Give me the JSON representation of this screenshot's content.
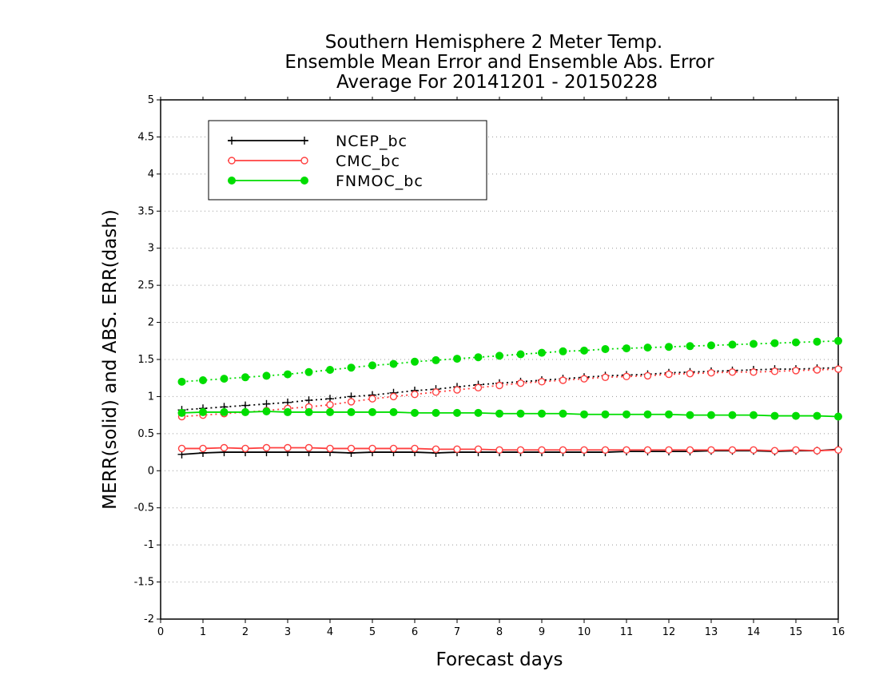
{
  "chart_data": {
    "type": "line",
    "title": [
      "Southern Hemisphere 2 Meter Temp.",
      "Ensemble Mean Error and Ensemble Abs. Error",
      "Average For 20141201 - 20150228"
    ],
    "xlabel": "Forecast days",
    "ylabel": "MERR(solid) and ABS. ERR(dash)",
    "xlim": [
      0,
      16
    ],
    "ylim": [
      -2,
      5
    ],
    "xticks": [
      0,
      1,
      2,
      3,
      4,
      5,
      6,
      7,
      8,
      9,
      10,
      11,
      12,
      13,
      14,
      15,
      16
    ],
    "yticks": [
      -2,
      -1.5,
      -1,
      -0.5,
      0,
      0.5,
      1,
      1.5,
      2,
      2.5,
      3,
      3.5,
      4,
      4.5,
      5
    ],
    "ytick_labels": [
      "-2",
      "-1.5",
      "-1",
      "-0.5",
      "0",
      "0.5",
      "1",
      "1.5",
      "2",
      "2.5",
      "3",
      "3.5",
      "4",
      "4.5",
      "5"
    ],
    "grid": "horizontal dotted",
    "legend": "top-left",
    "x": [
      0.5,
      1,
      1.5,
      2,
      2.5,
      3,
      3.5,
      4,
      4.5,
      5,
      5.5,
      6,
      6.5,
      7,
      7.5,
      8,
      8.5,
      9,
      9.5,
      10,
      10.5,
      11,
      11.5,
      12,
      12.5,
      13,
      13.5,
      14,
      14.5,
      15,
      15.5,
      16
    ],
    "series": [
      {
        "name": "NCEP_bc",
        "color": "#000000",
        "marker": "plus",
        "solid": [
          0.22,
          0.24,
          0.25,
          0.25,
          0.25,
          0.25,
          0.25,
          0.25,
          0.24,
          0.25,
          0.25,
          0.25,
          0.24,
          0.25,
          0.25,
          0.25,
          0.25,
          0.25,
          0.25,
          0.25,
          0.25,
          0.26,
          0.26,
          0.26,
          0.26,
          0.27,
          0.27,
          0.27,
          0.26,
          0.27,
          0.27,
          0.29
        ],
        "dash": [
          0.82,
          0.84,
          0.86,
          0.88,
          0.9,
          0.92,
          0.95,
          0.97,
          1.0,
          1.02,
          1.05,
          1.08,
          1.1,
          1.13,
          1.16,
          1.18,
          1.2,
          1.22,
          1.24,
          1.26,
          1.28,
          1.29,
          1.3,
          1.32,
          1.33,
          1.34,
          1.35,
          1.36,
          1.37,
          1.37,
          1.38,
          1.39
        ]
      },
      {
        "name": "CMC_bc",
        "color": "#ff4040",
        "marker": "open-circle",
        "solid": [
          0.3,
          0.3,
          0.31,
          0.3,
          0.31,
          0.31,
          0.31,
          0.3,
          0.3,
          0.3,
          0.3,
          0.3,
          0.29,
          0.29,
          0.29,
          0.28,
          0.28,
          0.28,
          0.28,
          0.28,
          0.28,
          0.28,
          0.28,
          0.28,
          0.28,
          0.28,
          0.28,
          0.28,
          0.27,
          0.28,
          0.27,
          0.28
        ],
        "dash": [
          0.73,
          0.75,
          0.77,
          0.79,
          0.81,
          0.84,
          0.86,
          0.89,
          0.93,
          0.97,
          1.0,
          1.03,
          1.06,
          1.09,
          1.12,
          1.15,
          1.18,
          1.2,
          1.22,
          1.24,
          1.26,
          1.27,
          1.28,
          1.3,
          1.31,
          1.32,
          1.33,
          1.33,
          1.34,
          1.35,
          1.36,
          1.37
        ]
      },
      {
        "name": "FNMOC_bc",
        "color": "#00dd00",
        "marker": "filled-circle",
        "solid": [
          0.78,
          0.79,
          0.79,
          0.79,
          0.8,
          0.79,
          0.79,
          0.79,
          0.79,
          0.79,
          0.79,
          0.78,
          0.78,
          0.78,
          0.78,
          0.77,
          0.77,
          0.77,
          0.77,
          0.76,
          0.76,
          0.76,
          0.76,
          0.76,
          0.75,
          0.75,
          0.75,
          0.75,
          0.74,
          0.74,
          0.74,
          0.73
        ],
        "dash": [
          1.2,
          1.22,
          1.24,
          1.26,
          1.28,
          1.3,
          1.33,
          1.36,
          1.39,
          1.42,
          1.44,
          1.47,
          1.49,
          1.51,
          1.53,
          1.55,
          1.57,
          1.59,
          1.61,
          1.62,
          1.64,
          1.65,
          1.66,
          1.67,
          1.68,
          1.69,
          1.7,
          1.71,
          1.72,
          1.73,
          1.74,
          1.75
        ]
      }
    ]
  }
}
